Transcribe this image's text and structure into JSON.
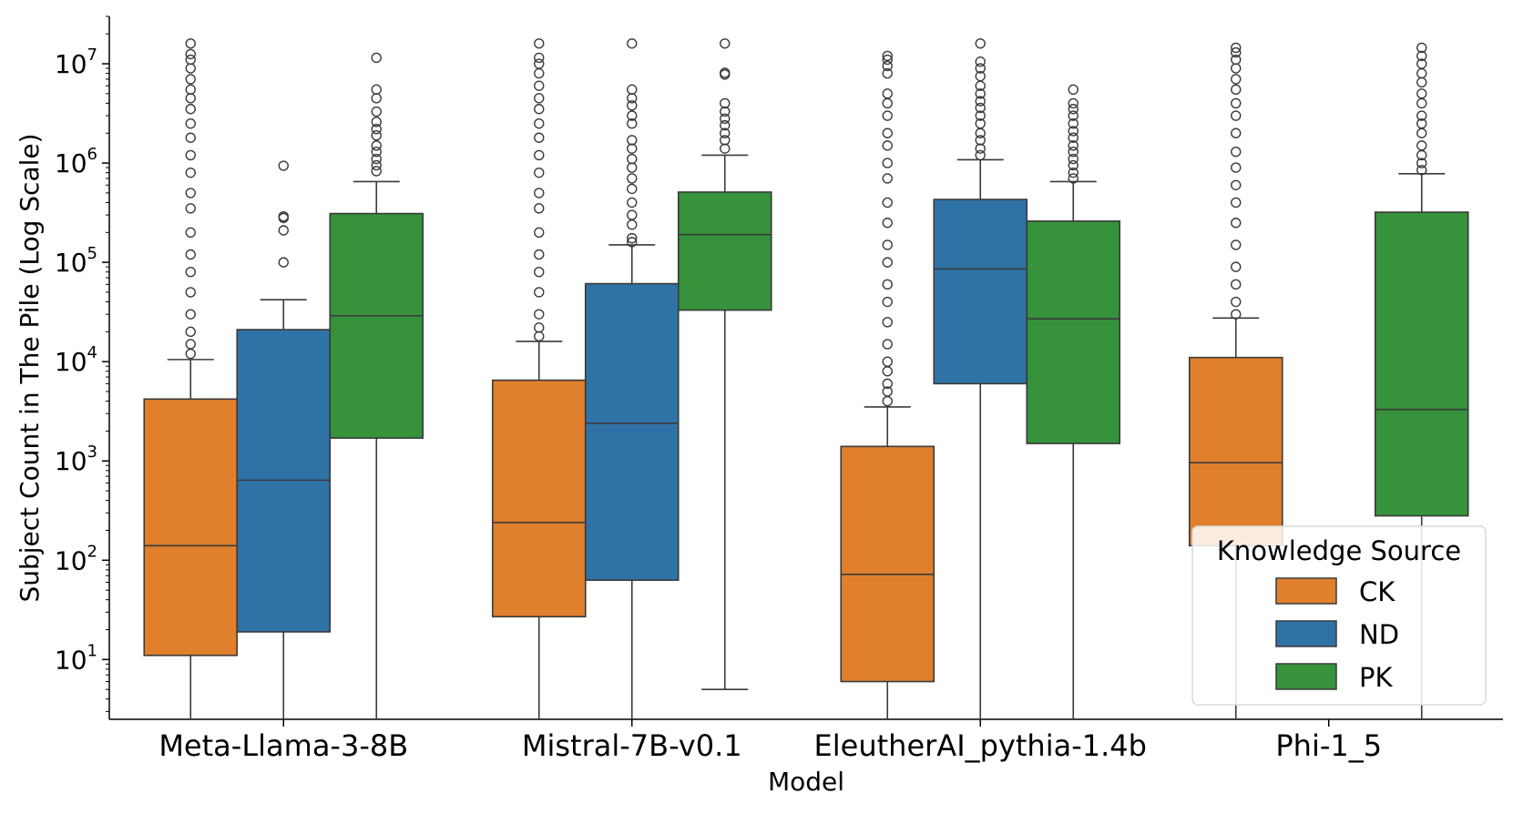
{
  "chart_data": {
    "type": "box",
    "title": "",
    "xlabel": "Model",
    "ylabel": "Subject Count in The Pile (Log Scale)",
    "yscale": "log",
    "ylim": [
      2.5,
      30000000
    ],
    "yticks": [
      {
        "base": "10",
        "exp": "1",
        "value": 10
      },
      {
        "base": "10",
        "exp": "2",
        "value": 100
      },
      {
        "base": "10",
        "exp": "3",
        "value": 1000
      },
      {
        "base": "10",
        "exp": "4",
        "value": 10000
      },
      {
        "base": "10",
        "exp": "5",
        "value": 100000
      },
      {
        "base": "10",
        "exp": "6",
        "value": 1000000
      },
      {
        "base": "10",
        "exp": "7",
        "value": 10000000
      }
    ],
    "categories": [
      "Meta-Llama-3-8B",
      "Mistral-7B-v0.1",
      "EleutherAI_pythia-1.4b",
      "Phi-1_5"
    ],
    "legend": {
      "title": "Knowledge Source",
      "position": "lower-right"
    },
    "series": [
      {
        "name": "CK",
        "color": "#e07f2c",
        "boxes": [
          {
            "whislo": 2.5,
            "q1": 11,
            "med": 140,
            "q3": 4200,
            "whishi": 10500,
            "fliers": [
              12000,
              15000,
              20000,
              30000,
              50000,
              80000,
              120000,
              200000,
              350000,
              500000,
              800000,
              1200000,
              1800000,
              2500000,
              3500000,
              4500000,
              5500000,
              7000000,
              9000000,
              11000000,
              12500000,
              16000000
            ]
          },
          {
            "whislo": 2.5,
            "q1": 27,
            "med": 240,
            "q3": 6500,
            "whishi": 16000,
            "fliers": [
              18000,
              22000,
              30000,
              50000,
              80000,
              120000,
              200000,
              350000,
              500000,
              800000,
              1200000,
              1800000,
              2500000,
              3500000,
              4500000,
              6000000,
              8000000,
              10000000,
              11500000,
              16000000
            ]
          },
          {
            "whislo": 2.5,
            "q1": 6,
            "med": 72,
            "q3": 1400,
            "whishi": 3500,
            "fliers": [
              4000,
              5000,
              6000,
              8000,
              10000,
              15000,
              25000,
              40000,
              60000,
              100000,
              150000,
              250000,
              400000,
              700000,
              1000000,
              1500000,
              2000000,
              3000000,
              4000000,
              5000000,
              8000000,
              9500000,
              11000000,
              12000000
            ]
          },
          {
            "whislo": 2.5,
            "q1": 140,
            "med": 960,
            "q3": 11000,
            "whishi": 27500,
            "fliers": [
              30000,
              40000,
              60000,
              90000,
              150000,
              250000,
              400000,
              600000,
              900000,
              1300000,
              2000000,
              3000000,
              4000000,
              5500000,
              7000000,
              9000000,
              11000000,
              13000000,
              14500000
            ]
          }
        ]
      },
      {
        "name": "ND",
        "color": "#2f73a6",
        "boxes": [
          {
            "whislo": 2.5,
            "q1": 19,
            "med": 640,
            "q3": 21000,
            "whishi": 42000,
            "fliers": [
              100000,
              210000,
              280000,
              290000,
              940000
            ]
          },
          {
            "whislo": 2.5,
            "q1": 63,
            "med": 2400,
            "q3": 61000,
            "whishi": 150000,
            "fliers": [
              160000,
              175000,
              240000,
              300000,
              400000,
              550000,
              700000,
              900000,
              1100000,
              1400000,
              1700000,
              2500000,
              3000000,
              3800000,
              4500000,
              5500000,
              16000000
            ]
          },
          {
            "whislo": 2.5,
            "q1": 6000,
            "med": 86000,
            "q3": 430000,
            "whishi": 1080000,
            "fliers": [
              1200000,
              1400000,
              1700000,
              2000000,
              2500000,
              3000000,
              3600000,
              4200000,
              5000000,
              6000000,
              7500000,
              9000000,
              10500000,
              16000000
            ]
          },
          {
            "whislo": 0,
            "q1": 0,
            "med": 0,
            "q3": 0,
            "whishi": 0,
            "fliers": []
          }
        ]
      },
      {
        "name": "PK",
        "color": "#36923b",
        "boxes": [
          {
            "whislo": 2.5,
            "q1": 1700,
            "med": 29000,
            "q3": 310000,
            "whishi": 650000,
            "fliers": [
              830000,
              950000,
              1100000,
              1300000,
              1500000,
              1900000,
              2200000,
              2600000,
              3300000,
              4500000,
              5500000,
              11500000
            ]
          },
          {
            "whislo": 5,
            "q1": 33000,
            "med": 190000,
            "q3": 510000,
            "whishi": 1200000,
            "fliers": [
              1400000,
              1700000,
              2000000,
              2400000,
              2800000,
              3300000,
              4000000,
              7800000,
              8100000,
              16000000
            ]
          },
          {
            "whislo": 2.5,
            "q1": 1500,
            "med": 27000,
            "q3": 260000,
            "whishi": 650000,
            "fliers": [
              700000,
              800000,
              950000,
              1100000,
              1300000,
              1500000,
              1800000,
              2100000,
              2500000,
              3000000,
              3500000,
              4000000,
              5500000
            ]
          },
          {
            "whislo": 2.5,
            "q1": 280,
            "med": 3300,
            "q3": 320000,
            "whishi": 780000,
            "fliers": [
              850000,
              1000000,
              1200000,
              1500000,
              2000000,
              2500000,
              3000000,
              4000000,
              5000000,
              6500000,
              8000000,
              10000000,
              12000000,
              14500000
            ]
          }
        ]
      }
    ]
  }
}
